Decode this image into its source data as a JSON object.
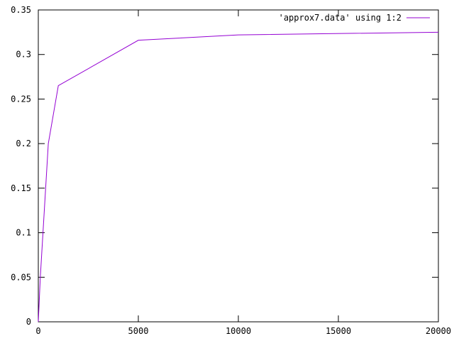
{
  "chart_data": {
    "type": "line",
    "title": "",
    "xlabel": "",
    "ylabel": "",
    "xlim": [
      0,
      20000
    ],
    "ylim": [
      0,
      0.35
    ],
    "x_ticks": [
      "0",
      "5000",
      "10000",
      "15000",
      "20000"
    ],
    "y_ticks": [
      "0",
      "0.05",
      "0.1",
      "0.15",
      "0.2",
      "0.25",
      "0.3",
      "0.35"
    ],
    "grid": false,
    "legend_position": "top-right",
    "series": [
      {
        "name": "'approx7.data' using 1:2",
        "color": "#9400d3",
        "x": [
          0,
          10,
          100,
          500,
          1000,
          5000,
          10000,
          20000
        ],
        "y": [
          0.0,
          0.005,
          0.05,
          0.2,
          0.265,
          0.316,
          0.322,
          0.325
        ]
      }
    ]
  }
}
